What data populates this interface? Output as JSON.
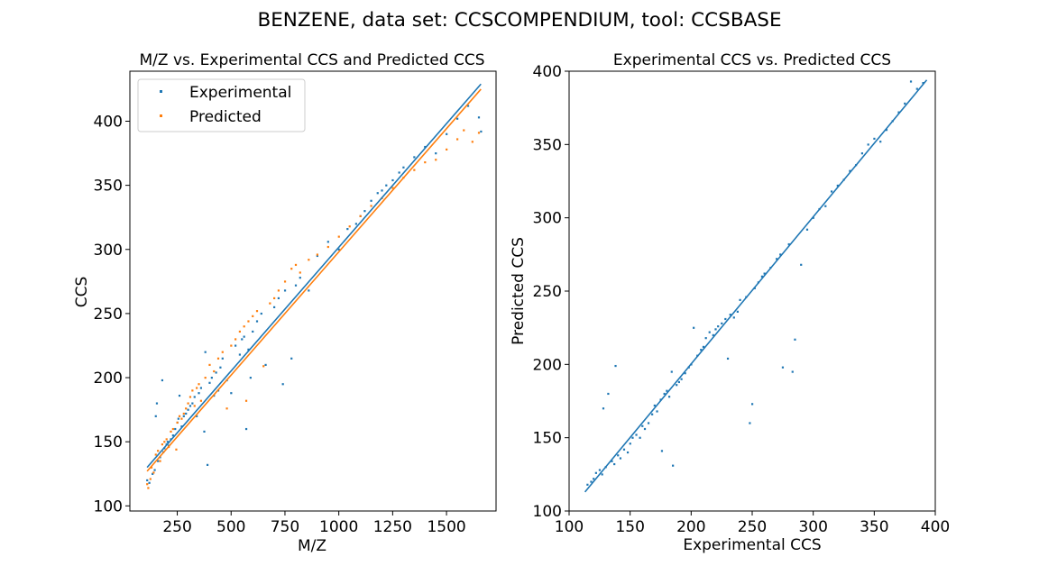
{
  "figure": {
    "suptitle": "BENZENE, data set: CCSCOMPENDIUM, tool: CCSBASE"
  },
  "colors": {
    "experimental": "#1f77b4",
    "predicted": "#ff7f0e",
    "axis": "#000000",
    "background": "#ffffff"
  },
  "chart_data": [
    {
      "type": "scatter",
      "title": "M/Z vs. Experimental CCS and Predicted CCS",
      "xlabel": "M/Z",
      "ylabel": "CCS",
      "xlim": [
        30,
        1730
      ],
      "ylim": [
        96,
        439
      ],
      "xticks": [
        250,
        500,
        750,
        1000,
        1250,
        1500
      ],
      "yticks": [
        100,
        150,
        200,
        250,
        300,
        350,
        400
      ],
      "grid": false,
      "legend": {
        "position": "top-left",
        "entries": [
          "Experimental",
          "Predicted"
        ]
      },
      "series": [
        {
          "name": "Experimental",
          "color": "#1f77b4",
          "fit_line": [
            [
              110,
              130
            ],
            [
              1660,
              429
            ]
          ],
          "points": [
            [
              110,
              120
            ],
            [
              120,
              118
            ],
            [
              135,
              125
            ],
            [
              145,
              128
            ],
            [
              150,
              170
            ],
            [
              155,
              180
            ],
            [
              160,
              135
            ],
            [
              170,
              138
            ],
            [
              180,
              198
            ],
            [
              185,
              142
            ],
            [
              190,
              145
            ],
            [
              200,
              148
            ],
            [
              205,
              150
            ],
            [
              210,
              147
            ],
            [
              220,
              152
            ],
            [
              230,
              155
            ],
            [
              240,
              160
            ],
            [
              250,
              165
            ],
            [
              255,
              168
            ],
            [
              260,
              186
            ],
            [
              270,
              162
            ],
            [
              280,
              170
            ],
            [
              290,
              172
            ],
            [
              300,
              175
            ],
            [
              310,
              178
            ],
            [
              320,
              180
            ],
            [
              330,
              185
            ],
            [
              340,
              170
            ],
            [
              350,
              188
            ],
            [
              360,
              192
            ],
            [
              375,
              158
            ],
            [
              380,
              220
            ],
            [
              390,
              132
            ],
            [
              400,
              196
            ],
            [
              410,
              200
            ],
            [
              420,
              186
            ],
            [
              430,
              204
            ],
            [
              440,
              190
            ],
            [
              450,
              208
            ],
            [
              460,
              215
            ],
            [
              480,
              198
            ],
            [
              500,
              188
            ],
            [
              520,
              225
            ],
            [
              540,
              218
            ],
            [
              550,
              230
            ],
            [
              560,
              232
            ],
            [
              570,
              160
            ],
            [
              580,
              222
            ],
            [
              590,
              200
            ],
            [
              600,
              236
            ],
            [
              620,
              244
            ],
            [
              640,
              250
            ],
            [
              660,
              210
            ],
            [
              700,
              255
            ],
            [
              720,
              262
            ],
            [
              740,
              195
            ],
            [
              750,
              268
            ],
            [
              780,
              215
            ],
            [
              800,
              272
            ],
            [
              820,
              278
            ],
            [
              860,
              268
            ],
            [
              900,
              295
            ],
            [
              950,
              306
            ],
            [
              1000,
              300
            ],
            [
              1040,
              316
            ],
            [
              1080,
              320
            ],
            [
              1100,
              326
            ],
            [
              1120,
              330
            ],
            [
              1150,
              338
            ],
            [
              1180,
              344
            ],
            [
              1200,
              346
            ],
            [
              1220,
              350
            ],
            [
              1250,
              354
            ],
            [
              1280,
              360
            ],
            [
              1300,
              364
            ],
            [
              1350,
              372
            ],
            [
              1400,
              380
            ],
            [
              1450,
              375
            ],
            [
              1500,
              390
            ],
            [
              1550,
              402
            ],
            [
              1600,
              412
            ],
            [
              1650,
              403
            ],
            [
              1660,
              392
            ]
          ]
        },
        {
          "name": "Predicted",
          "color": "#ff7f0e",
          "fit_line": [
            [
              110,
              127
            ],
            [
              1660,
              425
            ]
          ],
          "points": [
            [
              110,
              117
            ],
            [
              115,
              114
            ],
            [
              125,
              121
            ],
            [
              130,
              130
            ],
            [
              140,
              126
            ],
            [
              150,
              140
            ],
            [
              160,
              143
            ],
            [
              170,
              135
            ],
            [
              180,
              148
            ],
            [
              190,
              150
            ],
            [
              200,
              152
            ],
            [
              210,
              146
            ],
            [
              220,
              158
            ],
            [
              230,
              160
            ],
            [
              245,
              144
            ],
            [
              250,
              165
            ],
            [
              260,
              170
            ],
            [
              270,
              168
            ],
            [
              280,
              172
            ],
            [
              290,
              176
            ],
            [
              300,
              180
            ],
            [
              310,
              185
            ],
            [
              320,
              190
            ],
            [
              330,
              178
            ],
            [
              340,
              192
            ],
            [
              350,
              195
            ],
            [
              360,
              182
            ],
            [
              380,
              200
            ],
            [
              400,
              210
            ],
            [
              420,
              205
            ],
            [
              440,
              215
            ],
            [
              460,
              220
            ],
            [
              480,
              176
            ],
            [
              500,
              225
            ],
            [
              520,
              230
            ],
            [
              540,
              236
            ],
            [
              560,
              240
            ],
            [
              570,
              182
            ],
            [
              580,
              244
            ],
            [
              600,
              248
            ],
            [
              620,
              252
            ],
            [
              650,
              209
            ],
            [
              680,
              258
            ],
            [
              700,
              262
            ],
            [
              720,
              268
            ],
            [
              750,
              275
            ],
            [
              780,
              285
            ],
            [
              800,
              288
            ],
            [
              820,
              282
            ],
            [
              860,
              292
            ],
            [
              900,
              296
            ],
            [
              950,
              302
            ],
            [
              1000,
              310
            ],
            [
              1050,
              318
            ],
            [
              1100,
              326
            ],
            [
              1150,
              334
            ],
            [
              1200,
              340
            ],
            [
              1250,
              348
            ],
            [
              1300,
              356
            ],
            [
              1350,
              362
            ],
            [
              1400,
              368
            ],
            [
              1450,
              370
            ],
            [
              1500,
              378
            ],
            [
              1550,
              386
            ],
            [
              1580,
              393
            ],
            [
              1620,
              384
            ],
            [
              1650,
              391
            ]
          ]
        }
      ]
    },
    {
      "type": "scatter",
      "title": "Experimental CCS vs. Predicted CCS",
      "xlabel": "Experimental CCS",
      "ylabel": "Predicted CCS",
      "xlim": [
        100,
        400
      ],
      "ylim": [
        100,
        400
      ],
      "xticks": [
        100,
        150,
        200,
        250,
        300,
        350,
        400
      ],
      "yticks": [
        100,
        150,
        200,
        250,
        300,
        350,
        400
      ],
      "grid": false,
      "series": [
        {
          "name": "",
          "color": "#1f77b4",
          "fit_line": [
            [
              113,
              113
            ],
            [
              393,
              394
            ]
          ],
          "points": [
            [
              115,
              118
            ],
            [
              118,
              120
            ],
            [
              120,
              122
            ],
            [
              122,
              126
            ],
            [
              125,
              128
            ],
            [
              127,
              125
            ],
            [
              128,
              170
            ],
            [
              130,
              130
            ],
            [
              132,
              180
            ],
            [
              135,
              134
            ],
            [
              137,
              132
            ],
            [
              138,
              199
            ],
            [
              140,
              138
            ],
            [
              142,
              136
            ],
            [
              145,
              142
            ],
            [
              148,
              140
            ],
            [
              150,
              146
            ],
            [
              152,
              150
            ],
            [
              155,
              152
            ],
            [
              158,
              150
            ],
            [
              160,
              158
            ],
            [
              162,
              156
            ],
            [
              165,
              160
            ],
            [
              168,
              166
            ],
            [
              170,
              172
            ],
            [
              172,
              168
            ],
            [
              175,
              176
            ],
            [
              176,
              141
            ],
            [
              178,
              180
            ],
            [
              180,
              182
            ],
            [
              182,
              178
            ],
            [
              184,
              195
            ],
            [
              185,
              131
            ],
            [
              188,
              186
            ],
            [
              190,
              188
            ],
            [
              192,
              190
            ],
            [
              195,
              194
            ],
            [
              198,
              198
            ],
            [
              200,
              200
            ],
            [
              202,
              225
            ],
            [
              205,
              206
            ],
            [
              208,
              210
            ],
            [
              210,
              212
            ],
            [
              212,
              218
            ],
            [
              215,
              222
            ],
            [
              218,
              220
            ],
            [
              220,
              224
            ],
            [
              222,
              226
            ],
            [
              225,
              228
            ],
            [
              228,
              231
            ],
            [
              230,
              204
            ],
            [
              232,
              234
            ],
            [
              235,
              232
            ],
            [
              238,
              236
            ],
            [
              240,
              244
            ],
            [
              245,
              246
            ],
            [
              248,
              160
            ],
            [
              250,
              173
            ],
            [
              252,
              252
            ],
            [
              255,
              256
            ],
            [
              258,
              260
            ],
            [
              260,
              262
            ],
            [
              265,
              266
            ],
            [
              270,
              272
            ],
            [
              273,
              275
            ],
            [
              275,
              198
            ],
            [
              280,
              282
            ],
            [
              283,
              195
            ],
            [
              285,
              217
            ],
            [
              290,
              268
            ],
            [
              295,
              292
            ],
            [
              300,
              300
            ],
            [
              305,
              306
            ],
            [
              310,
              308
            ],
            [
              315,
              318
            ],
            [
              320,
              322
            ],
            [
              325,
              326
            ],
            [
              330,
              332
            ],
            [
              335,
              336
            ],
            [
              340,
              344
            ],
            [
              345,
              350
            ],
            [
              350,
              354
            ],
            [
              355,
              352
            ],
            [
              360,
              360
            ],
            [
              365,
              366
            ],
            [
              370,
              372
            ],
            [
              375,
              378
            ],
            [
              380,
              393
            ],
            [
              385,
              388
            ],
            [
              390,
              392
            ]
          ]
        }
      ]
    }
  ]
}
